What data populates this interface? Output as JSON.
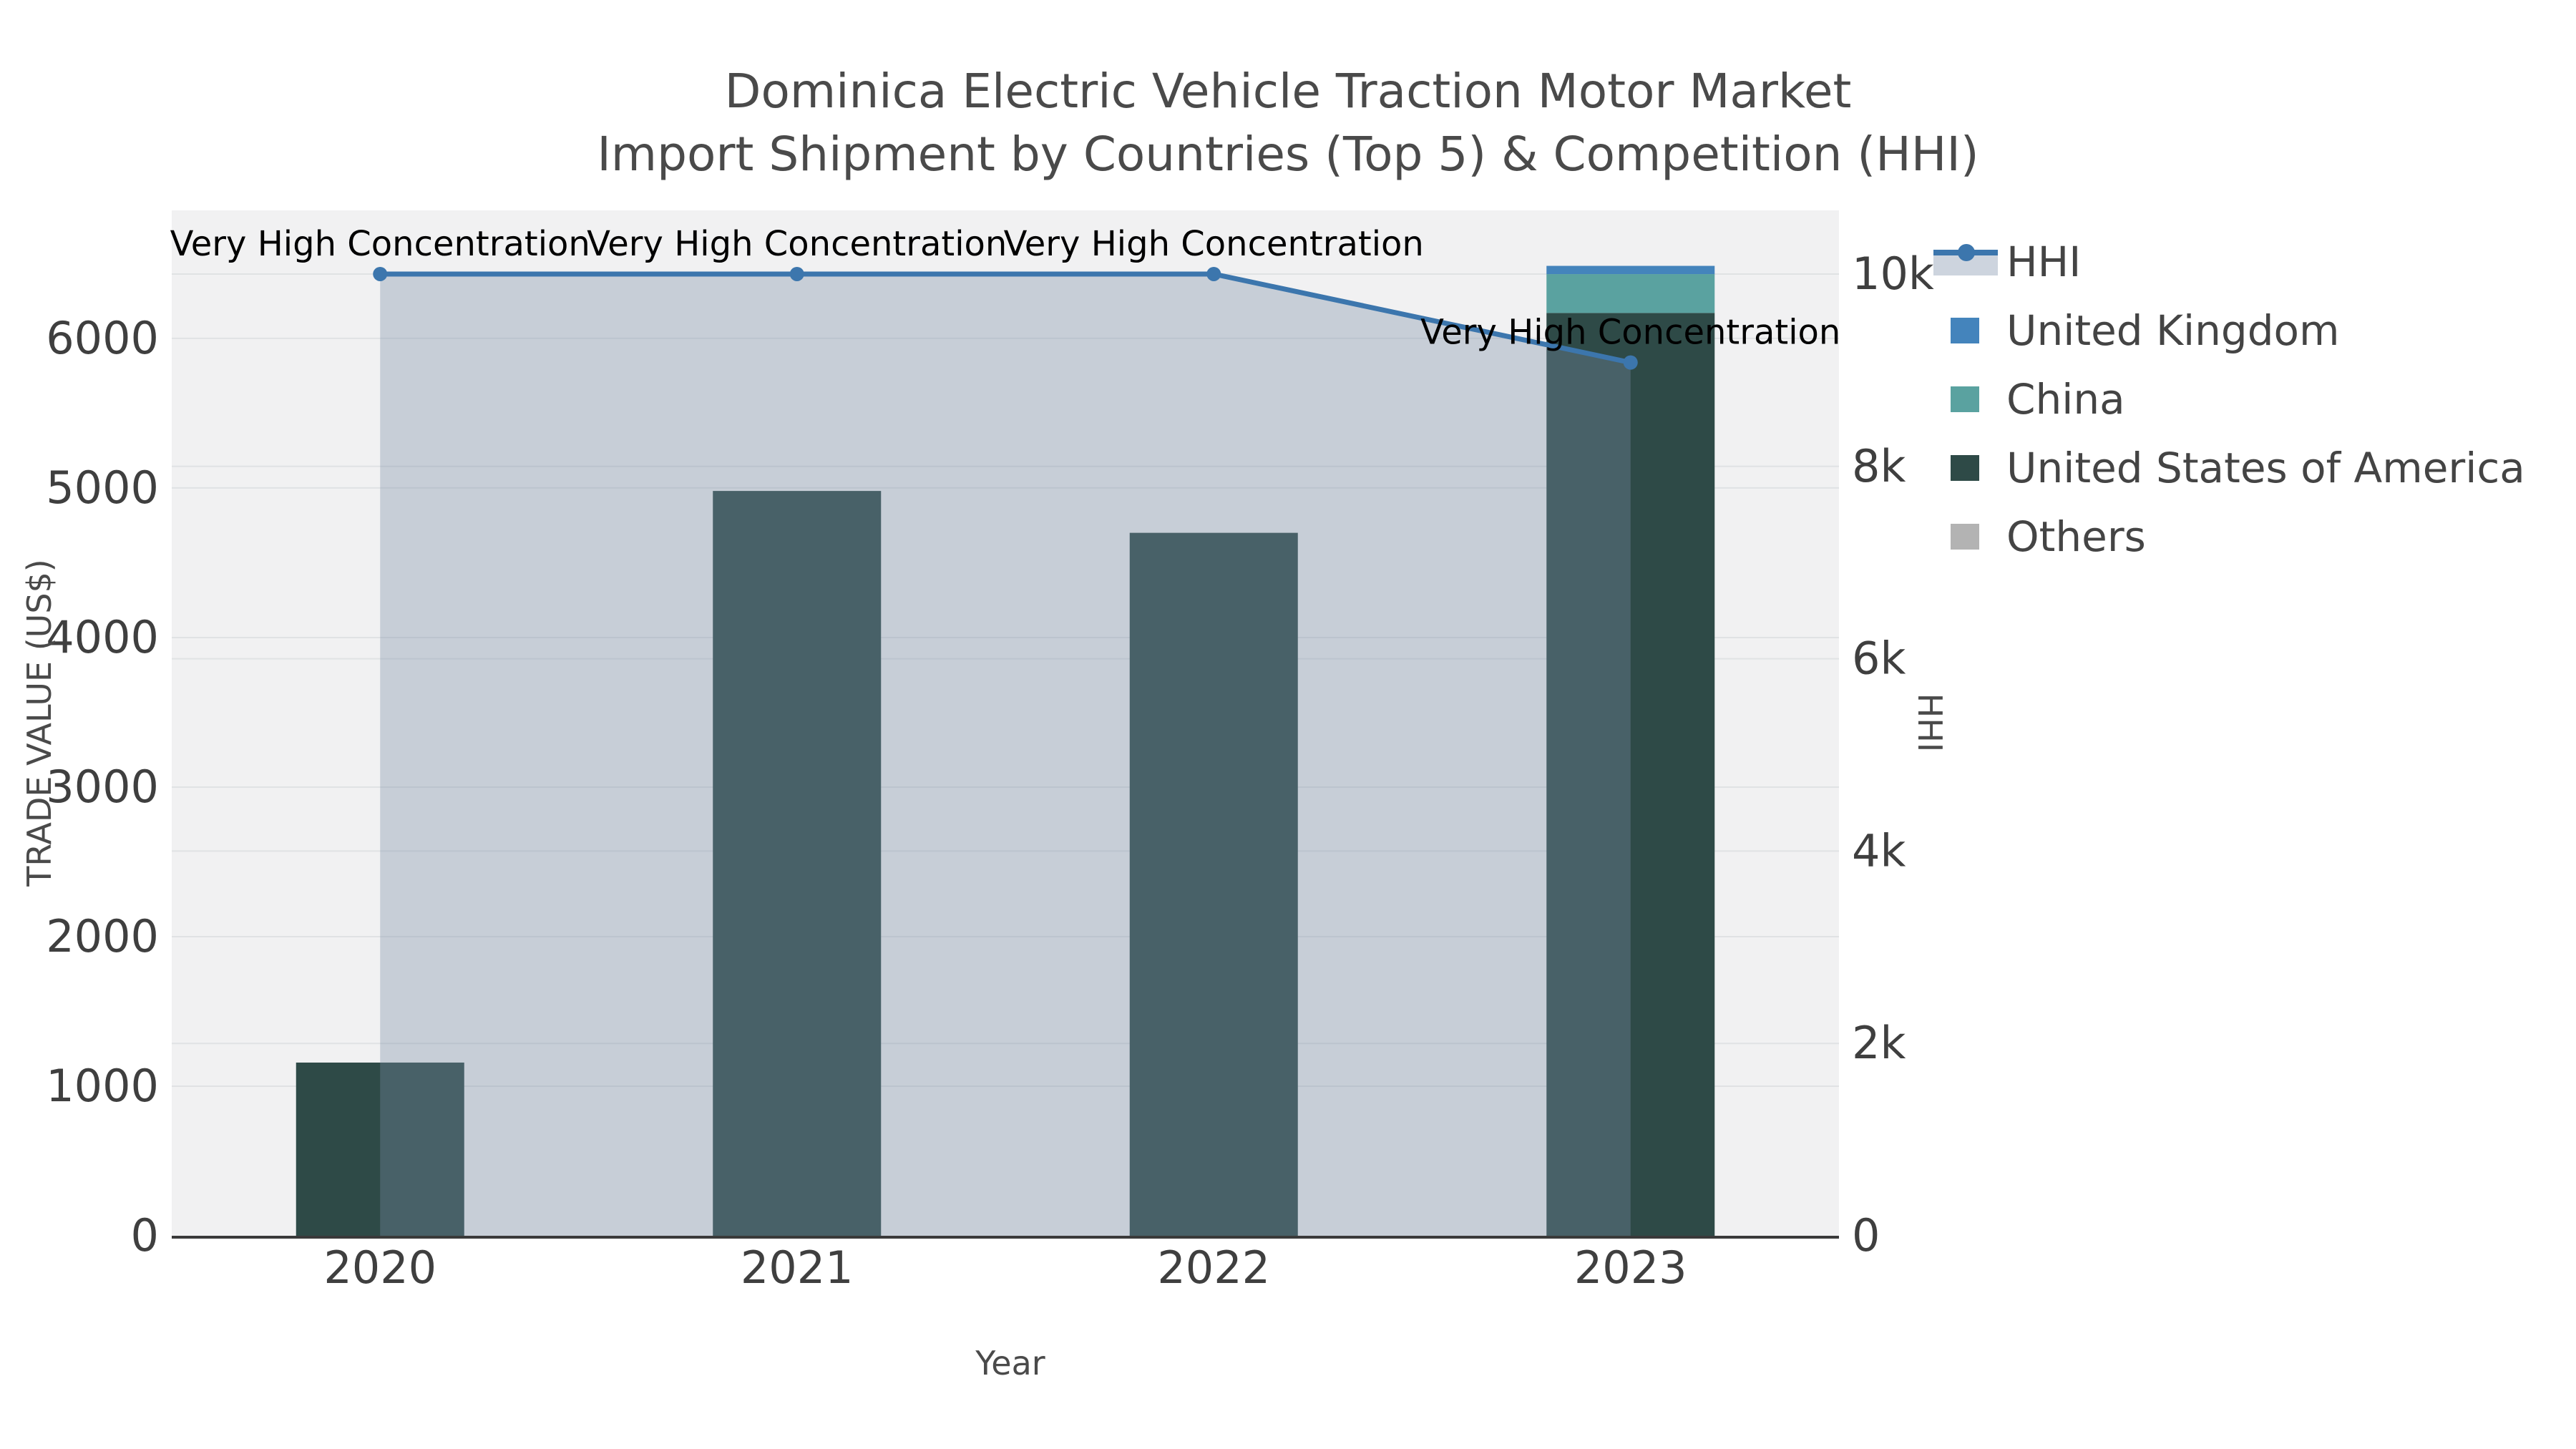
{
  "title": {
    "line1": "Dominica Electric Vehicle Traction Motor Market",
    "line2": "Import Shipment by Countries (Top 5) & Competition (HHI)"
  },
  "chart_data": {
    "type": "bar+line",
    "title": "Dominica Electric Vehicle Traction Motor Market Import Shipment by Countries (Top 5) & Competition (HHI)",
    "xlabel": "Year",
    "ylabel_left": "TRADE VALUE (US$)",
    "ylabel_right": "HHI",
    "categories": [
      "2020",
      "2021",
      "2022",
      "2023"
    ],
    "bar_series": [
      {
        "name": "United States of America",
        "color": "#2e4a47",
        "values": [
          1158,
          4980,
          4700,
          6170
        ]
      },
      {
        "name": "China",
        "color": "#5aa2a0",
        "values": [
          0,
          0,
          0,
          260
        ]
      },
      {
        "name": "United Kingdom",
        "color": "#4484bc",
        "values": [
          0,
          0,
          0,
          55
        ]
      },
      {
        "name": "Others",
        "color": "#b3b3b3",
        "values": [
          0,
          0,
          0,
          0
        ]
      }
    ],
    "line_series": {
      "name": "HHI",
      "color": "#3c76ad",
      "area_fill_color": "rgba(120,140,165,0.35)",
      "values": [
        10000,
        10000,
        10000,
        9080
      ]
    },
    "annotations": [
      {
        "x_index": 0,
        "text": "Very High Concentration"
      },
      {
        "x_index": 1,
        "text": "Very High Concentration"
      },
      {
        "x_index": 2,
        "text": "Very High Concentration"
      },
      {
        "x_index": 3,
        "text": "Very High Concentration"
      }
    ],
    "y_left_axis": {
      "range": [
        0,
        6856
      ],
      "tick_values": [
        0,
        1000,
        2000,
        3000,
        4000,
        5000,
        6000
      ],
      "tick_labels": [
        "0",
        "1000",
        "2000",
        "3000",
        "4000",
        "5000",
        "6000"
      ]
    },
    "y_right_axis": {
      "range": [
        0,
        10662
      ],
      "tick_values": [
        0,
        2000,
        4000,
        6000,
        8000,
        10000
      ],
      "tick_labels": [
        "0",
        "2k",
        "4k",
        "6k",
        "8k",
        "10k"
      ]
    },
    "grid": true,
    "legend_position": "right"
  },
  "legend": {
    "items": [
      {
        "label": "HHI",
        "symbol": "line",
        "color": "#3c76ad",
        "area_color": "#cdd4de"
      },
      {
        "label": "United Kingdom",
        "symbol": "square",
        "color": "#4484bc"
      },
      {
        "label": "China",
        "symbol": "square",
        "color": "#5aa2a0"
      },
      {
        "label": "United States of America",
        "symbol": "square",
        "color": "#2e4a47"
      },
      {
        "label": "Others",
        "symbol": "square",
        "color": "#b3b3b3"
      }
    ]
  },
  "style_colors": {
    "plot_background": "#f1f1f2",
    "gridline": "#e0e2e4",
    "axis_line": "#3a3a3a",
    "tick_text": "#3f3f3f",
    "annotation_text": "#000000"
  }
}
